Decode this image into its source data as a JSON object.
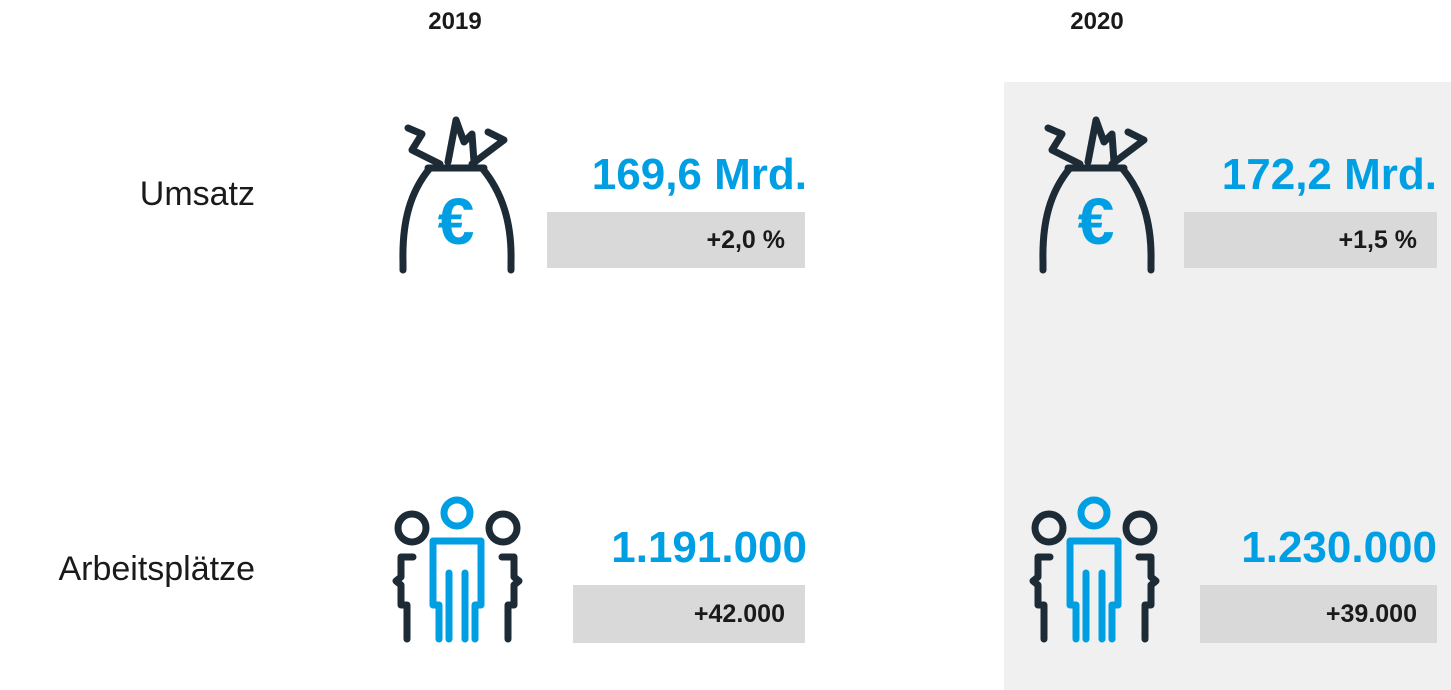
{
  "columns": [
    "2019",
    "2020"
  ],
  "rows": [
    {
      "label": "Umsatz",
      "cells": [
        {
          "value": "169,6 Mrd.",
          "change": "+2,0 %"
        },
        {
          "value": "172,2 Mrd.",
          "change": "+1,5 %"
        }
      ]
    },
    {
      "label": "Arbeitsplätze",
      "cells": [
        {
          "value": "1.191.000",
          "change": "+42.000"
        },
        {
          "value": "1.230.000",
          "change": "+39.000"
        }
      ]
    }
  ]
}
